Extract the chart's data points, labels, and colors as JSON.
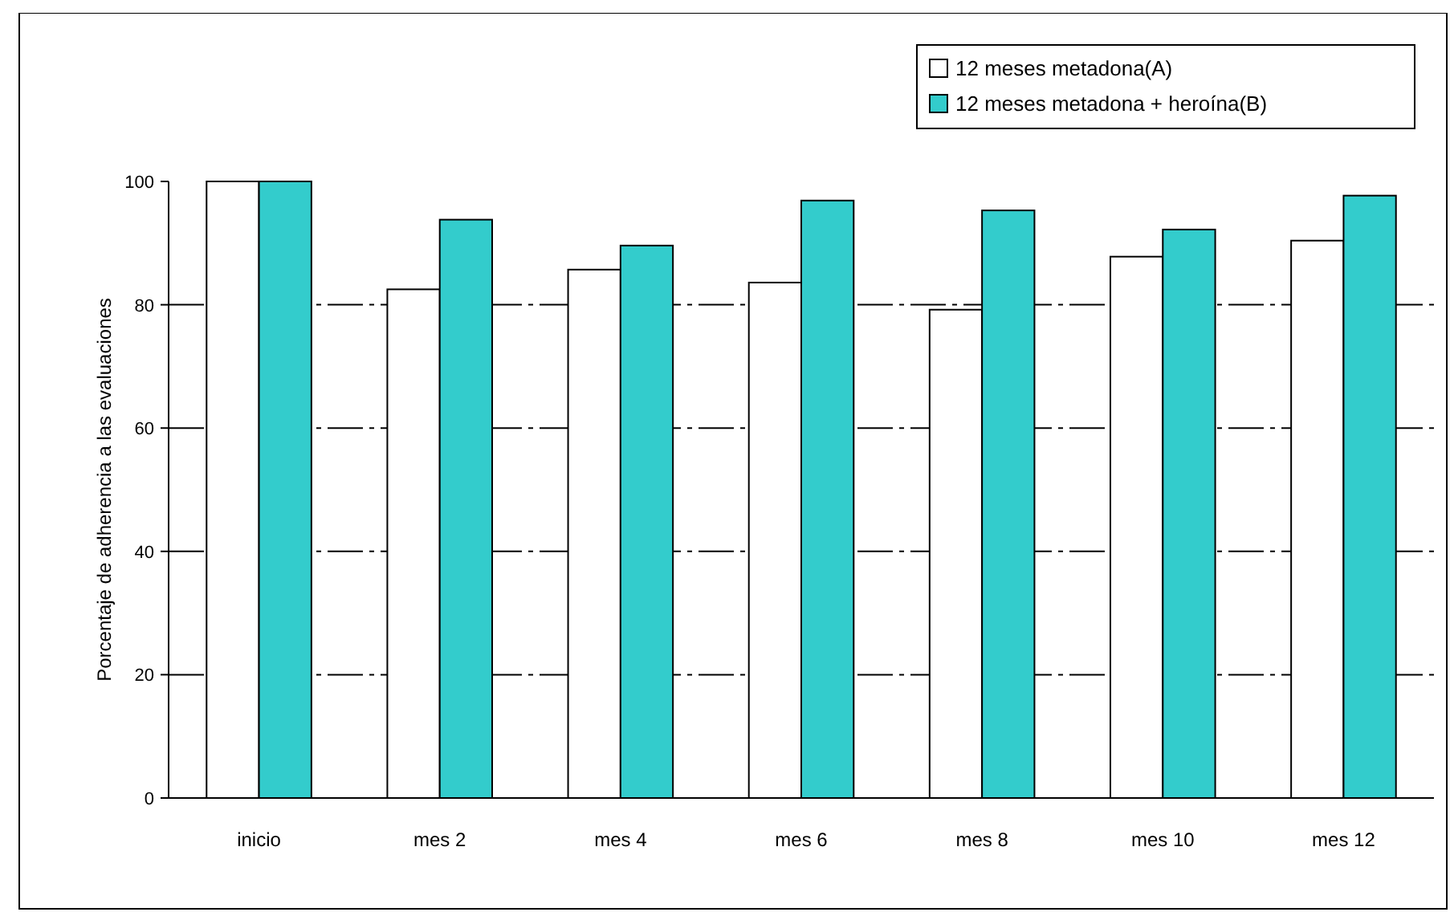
{
  "chart_data": {
    "type": "bar",
    "ylabel": "Porcentaje de adherencia a las evaluaciones",
    "categories": [
      "inicio",
      "mes 2",
      "mes 4",
      "mes 6",
      "mes 8",
      "mes 10",
      "mes 12"
    ],
    "series": [
      {
        "name": "12 meses metadona(A)",
        "color": "#ffffff",
        "values": [
          100,
          82.5,
          85.7,
          83.6,
          79.2,
          87.8,
          90.4
        ]
      },
      {
        "name": "12 meses metadona + heroína(B)",
        "color": "#33cccc",
        "values": [
          100,
          93.8,
          89.6,
          96.9,
          95.3,
          92.2,
          97.7
        ]
      }
    ],
    "ylim": [
      0,
      100
    ],
    "yticks": [
      0,
      20,
      40,
      60,
      80,
      100
    ],
    "grid": "y",
    "legend": "top right"
  }
}
